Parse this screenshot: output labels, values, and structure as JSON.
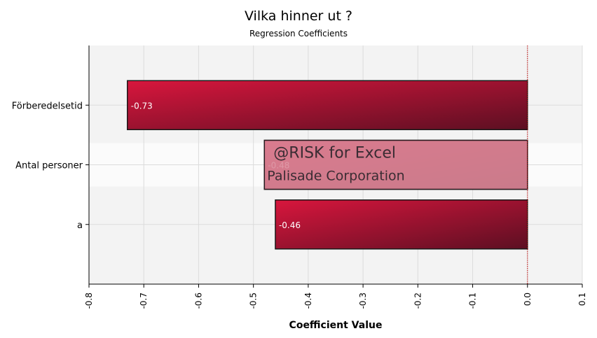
{
  "chart_data": {
    "type": "bar",
    "orientation": "horizontal",
    "title": "Vilka hinner ut ?",
    "subtitle": "Regression Coefficients",
    "xlabel": "Coefficient Value",
    "ylabel": "",
    "categories": [
      "Förberedelsetid",
      "Antal personer",
      "a"
    ],
    "values": [
      -0.73,
      -0.48,
      -0.46
    ],
    "value_labels": [
      "-0.73",
      "-0.48",
      "-0.46"
    ],
    "xlim": [
      -0.8,
      0.1
    ],
    "x_ticks": [
      "-0.8",
      "-0.7",
      "-0.6",
      "-0.5",
      "-0.4",
      "-0.3",
      "-0.2",
      "-0.1",
      "0.0",
      "0.1"
    ],
    "grid": true,
    "reference_line": 0.0,
    "highlighted_category": "Antal personer",
    "colors": {
      "bar_light": "#d8163d",
      "bar_dark": "#5c0f22",
      "bar_border": "#1a1a1a",
      "plot_background": "#f3f3f3",
      "reference_line": "#c00000",
      "watermark_box": "#d98a9a"
    }
  },
  "watermark": {
    "line1": "@RISK for Excel",
    "line2": "Palisade Corporation"
  }
}
